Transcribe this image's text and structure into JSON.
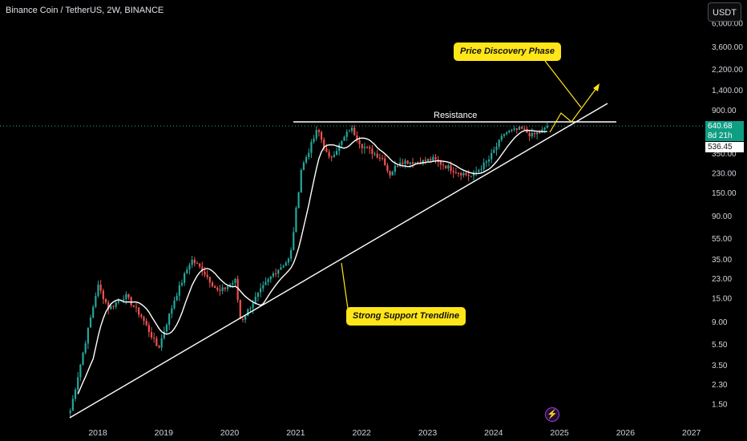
{
  "header": {
    "title": "Binance Coin / TetherUS, 2W, BINANCE"
  },
  "toolbar": {
    "currency_label": "USDT"
  },
  "chart_data": {
    "type": "candlestick",
    "title": "",
    "xlabel": "",
    "ylabel": "",
    "y_scale": "log",
    "x_ticks": [
      "2018",
      "2019",
      "2020",
      "2021",
      "2022",
      "2023",
      "2024",
      "2025",
      "2026",
      "2027"
    ],
    "y_ticks": [
      "1.50",
      "2.30",
      "3.50",
      "5.50",
      "9.00",
      "15.00",
      "23.00",
      "35.00",
      "55.00",
      "90.00",
      "150.00",
      "230.00",
      "350.00",
      "900.00",
      "1,400.00",
      "2,200.00",
      "3,600.00",
      "6,000.00"
    ],
    "last_price": "640.68",
    "countdown": "8d 21h",
    "moving_average_value": "536.45",
    "colors": {
      "up": "#26a69a",
      "down": "#ef5350",
      "background": "#000000",
      "moving_average": "#ffffff",
      "callout": "#ffe619"
    },
    "annotations": {
      "resistance_label": "Resistance",
      "callout_top": "Price Discovery Phase",
      "callout_bottom": "Strong Support Trendline"
    },
    "price_anchors": [
      {
        "date": "2017-08",
        "price": 1.3
      },
      {
        "date": "2018-01",
        "price": 20
      },
      {
        "date": "2018-03",
        "price": 12
      },
      {
        "date": "2018-06",
        "price": 16
      },
      {
        "date": "2018-09",
        "price": 10
      },
      {
        "date": "2018-12",
        "price": 5
      },
      {
        "date": "2019-03",
        "price": 15
      },
      {
        "date": "2019-06",
        "price": 35
      },
      {
        "date": "2019-08",
        "price": 28
      },
      {
        "date": "2019-11",
        "price": 17
      },
      {
        "date": "2020-02",
        "price": 22
      },
      {
        "date": "2020-03",
        "price": 9
      },
      {
        "date": "2020-06",
        "price": 16
      },
      {
        "date": "2020-09",
        "price": 26
      },
      {
        "date": "2020-12",
        "price": 36
      },
      {
        "date": "2021-02",
        "price": 250
      },
      {
        "date": "2021-05",
        "price": 600
      },
      {
        "date": "2021-07",
        "price": 310
      },
      {
        "date": "2021-09",
        "price": 420
      },
      {
        "date": "2021-11",
        "price": 620
      },
      {
        "date": "2022-01",
        "price": 420
      },
      {
        "date": "2022-05",
        "price": 310
      },
      {
        "date": "2022-06",
        "price": 220
      },
      {
        "date": "2022-08",
        "price": 300
      },
      {
        "date": "2022-11",
        "price": 290
      },
      {
        "date": "2023-02",
        "price": 310
      },
      {
        "date": "2023-06",
        "price": 240
      },
      {
        "date": "2023-09",
        "price": 215
      },
      {
        "date": "2023-12",
        "price": 300
      },
      {
        "date": "2024-03",
        "price": 550
      },
      {
        "date": "2024-06",
        "price": 600
      },
      {
        "date": "2024-08",
        "price": 520
      },
      {
        "date": "2024-10",
        "price": 580
      },
      {
        "date": "2024-11",
        "price": 640.68
      }
    ]
  }
}
